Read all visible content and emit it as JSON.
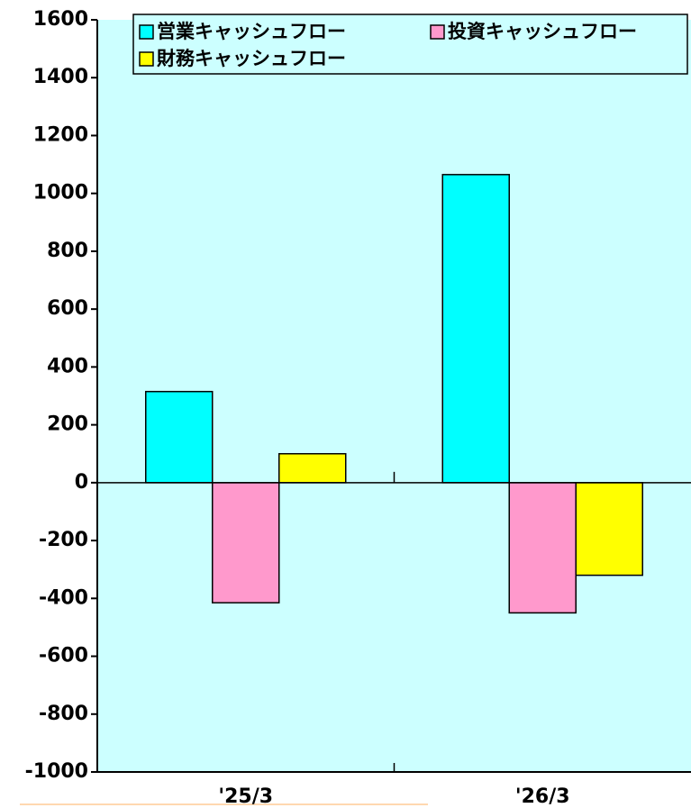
{
  "chart_data": {
    "type": "bar",
    "categories": [
      "'25/3",
      "'26/3"
    ],
    "series": [
      {
        "name": "営業キャッシュフロー",
        "color": "#00ffff",
        "values": [
          315,
          1065
        ]
      },
      {
        "name": "投資キャッシュフロー",
        "color": "#ff99cc",
        "values": [
          -415,
          -450
        ]
      },
      {
        "name": "財務キャッシュフロー",
        "color": "#ffff00",
        "values": [
          100,
          -320
        ]
      }
    ],
    "ylim": [
      -1000,
      1600
    ],
    "yticks": [
      -1000,
      -800,
      -600,
      -400,
      -200,
      0,
      200,
      400,
      600,
      800,
      1000,
      1200,
      1400,
      1600
    ],
    "background": "#ccffff",
    "legend": "top"
  }
}
